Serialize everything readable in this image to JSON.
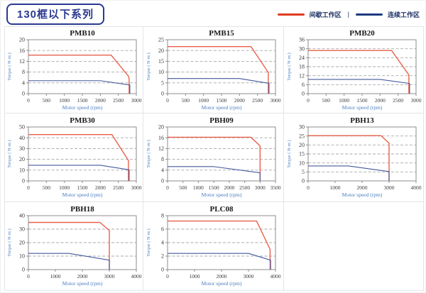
{
  "header": {
    "title": "130框以下系列",
    "legend": [
      {
        "label": "间歇工作区",
        "color": "#e23b20"
      },
      {
        "label": "连续工作区",
        "color": "#1e3a80"
      }
    ],
    "legend_separator": "|"
  },
  "axis_labels": {
    "xlabel": "Motor speed (rpm)",
    "ylabel": "Torque ( N·m )"
  },
  "colors": {
    "intermittent": "#e8604a",
    "continuous": "#44589c",
    "grid": "#a8a8a8",
    "frame": "#8c8c8c",
    "tick_text": "#3a3a3a",
    "axis_label": "#4a7ec0",
    "title_box": "#2b3990",
    "chart_title": "#1a1a1a"
  },
  "chart_data": [
    {
      "name": "PMB10",
      "type": "line",
      "xlabel": "Motor speed (rpm)",
      "ylabel": "Torque ( N·m )",
      "xlim": [
        0,
        3000
      ],
      "xticks": [
        0,
        500,
        1000,
        1500,
        2000,
        2500,
        3000
      ],
      "ylim": [
        0,
        20
      ],
      "yticks": [
        0,
        4,
        8,
        12,
        16,
        20
      ],
      "series": [
        {
          "name": "间歇工作区",
          "color_key": "intermittent",
          "points": [
            [
              0,
              14.3
            ],
            [
              2300,
              14.3
            ],
            [
              2780,
              6.5
            ],
            [
              2800,
              5.5
            ],
            [
              2800,
              0
            ]
          ]
        },
        {
          "name": "连续工作区",
          "color_key": "continuous",
          "points": [
            [
              0,
              4.8
            ],
            [
              2000,
              4.8
            ],
            [
              2820,
              3.2
            ],
            [
              2820,
              0
            ]
          ]
        }
      ]
    },
    {
      "name": "PMB15",
      "type": "line",
      "xlabel": "Motor speed (rpm)",
      "ylabel": "Torque ( N·m )",
      "xlim": [
        0,
        3000
      ],
      "xticks": [
        0,
        500,
        1000,
        1500,
        2000,
        2500,
        3000
      ],
      "ylim": [
        0,
        25
      ],
      "yticks": [
        0,
        5,
        10,
        15,
        20,
        25
      ],
      "series": [
        {
          "name": "间歇工作区",
          "color_key": "intermittent",
          "points": [
            [
              0,
              21.8
            ],
            [
              2320,
              21.8
            ],
            [
              2800,
              9.8
            ],
            [
              2800,
              0
            ]
          ]
        },
        {
          "name": "连续工作区",
          "color_key": "continuous",
          "points": [
            [
              0,
              7
            ],
            [
              2000,
              7
            ],
            [
              2820,
              4.8
            ],
            [
              2820,
              0
            ]
          ]
        }
      ]
    },
    {
      "name": "PMB20",
      "type": "line",
      "xlabel": "Motor speed (rpm)",
      "ylabel": "Torque ( N·m )",
      "xlim": [
        0,
        3000
      ],
      "xticks": [
        0,
        500,
        1000,
        1500,
        2000,
        2500,
        3000
      ],
      "ylim": [
        0,
        36
      ],
      "yticks": [
        0,
        6,
        12,
        18,
        24,
        30,
        36
      ],
      "series": [
        {
          "name": "间歇工作区",
          "color_key": "intermittent",
          "points": [
            [
              0,
              28.8
            ],
            [
              2320,
              28.8
            ],
            [
              2800,
              12.5
            ],
            [
              2800,
              0
            ]
          ]
        },
        {
          "name": "连续工作区",
          "color_key": "continuous",
          "points": [
            [
              0,
              9.5
            ],
            [
              2000,
              9.5
            ],
            [
              2820,
              6.8
            ],
            [
              2820,
              0
            ]
          ]
        }
      ]
    },
    {
      "name": "PMB30",
      "type": "line",
      "xlabel": "Motor speed (rpm)",
      "ylabel": "Torque ( N·m )",
      "xlim": [
        0,
        3000
      ],
      "xticks": [
        0,
        500,
        1000,
        1500,
        2000,
        2500,
        3000
      ],
      "ylim": [
        0,
        50
      ],
      "yticks": [
        0,
        10,
        20,
        30,
        40,
        50
      ],
      "series": [
        {
          "name": "间歇工作区",
          "color_key": "intermittent",
          "points": [
            [
              0,
              43
            ],
            [
              2320,
              43
            ],
            [
              2780,
              19
            ],
            [
              2780,
              0
            ]
          ]
        },
        {
          "name": "连续工作区",
          "color_key": "continuous",
          "points": [
            [
              0,
              14.5
            ],
            [
              2000,
              14.5
            ],
            [
              2800,
              10.3
            ],
            [
              2800,
              0
            ]
          ]
        }
      ]
    },
    {
      "name": "PBH09",
      "type": "line",
      "xlabel": "Motor speed (rpm)",
      "ylabel": "Torque ( N·m )",
      "xlim": [
        0,
        3500
      ],
      "xticks": [
        0,
        500,
        1000,
        1500,
        2000,
        2500,
        3000,
        3500
      ],
      "ylim": [
        0,
        20
      ],
      "yticks": [
        0,
        4,
        8,
        12,
        16,
        20
      ],
      "series": [
        {
          "name": "间歇工作区",
          "color_key": "intermittent",
          "points": [
            [
              0,
              16.2
            ],
            [
              2700,
              16.2
            ],
            [
              3000,
              13
            ],
            [
              3000,
              0
            ]
          ]
        },
        {
          "name": "连续工作区",
          "color_key": "continuous",
          "points": [
            [
              0,
              5.3
            ],
            [
              1500,
              5.3
            ],
            [
              3000,
              3
            ],
            [
              3000,
              0
            ]
          ]
        }
      ]
    },
    {
      "name": "PBH13",
      "type": "line",
      "xlabel": "Motor speed (rpm)",
      "ylabel": "Torque ( N·m )",
      "xlim": [
        0,
        4000
      ],
      "xticks": [
        0,
        1000,
        2000,
        3000,
        4000
      ],
      "ylim": [
        0,
        30
      ],
      "yticks": [
        0,
        5,
        10,
        15,
        20,
        25,
        30
      ],
      "series": [
        {
          "name": "间歇工作区",
          "color_key": "intermittent",
          "points": [
            [
              0,
              25.2
            ],
            [
              2700,
              25.2
            ],
            [
              3000,
              21
            ],
            [
              3000,
              0
            ]
          ]
        },
        {
          "name": "连续工作区",
          "color_key": "continuous",
          "points": [
            [
              0,
              8.3
            ],
            [
              1500,
              8.3
            ],
            [
              3000,
              5.2
            ],
            [
              3000,
              0
            ]
          ]
        }
      ]
    },
    {
      "name": "PBH18",
      "type": "line",
      "xlabel": "Motor speed (rpm)",
      "ylabel": "Torque ( N·m )",
      "xlim": [
        0,
        4000
      ],
      "xticks": [
        0,
        1000,
        2000,
        3000,
        4000
      ],
      "ylim": [
        0,
        40
      ],
      "yticks": [
        0,
        10,
        20,
        30,
        40
      ],
      "series": [
        {
          "name": "间歇工作区",
          "color_key": "intermittent",
          "points": [
            [
              0,
              35
            ],
            [
              2650,
              35
            ],
            [
              3000,
              29
            ],
            [
              3000,
              0
            ]
          ]
        },
        {
          "name": "连续工作区",
          "color_key": "continuous",
          "points": [
            [
              0,
              12
            ],
            [
              1500,
              12
            ],
            [
              3000,
              7
            ],
            [
              3000,
              0
            ]
          ]
        }
      ]
    },
    {
      "name": "PLC08",
      "type": "line",
      "xlabel": "Motor speed (rpm)",
      "ylabel": "Torque ( N·m )",
      "xlim": [
        0,
        4000
      ],
      "xticks": [
        0,
        1000,
        2000,
        3000,
        4000
      ],
      "ylim": [
        0,
        8
      ],
      "yticks": [
        0,
        2,
        4,
        6,
        8
      ],
      "series": [
        {
          "name": "间歇工作区",
          "color_key": "intermittent",
          "points": [
            [
              0,
              7.2
            ],
            [
              3300,
              7.2
            ],
            [
              3800,
              3
            ],
            [
              3800,
              0
            ]
          ]
        },
        {
          "name": "连续工作区",
          "color_key": "continuous",
          "points": [
            [
              0,
              2.4
            ],
            [
              3000,
              2.4
            ],
            [
              3820,
              1.4
            ],
            [
              3820,
              0
            ]
          ]
        }
      ]
    }
  ]
}
